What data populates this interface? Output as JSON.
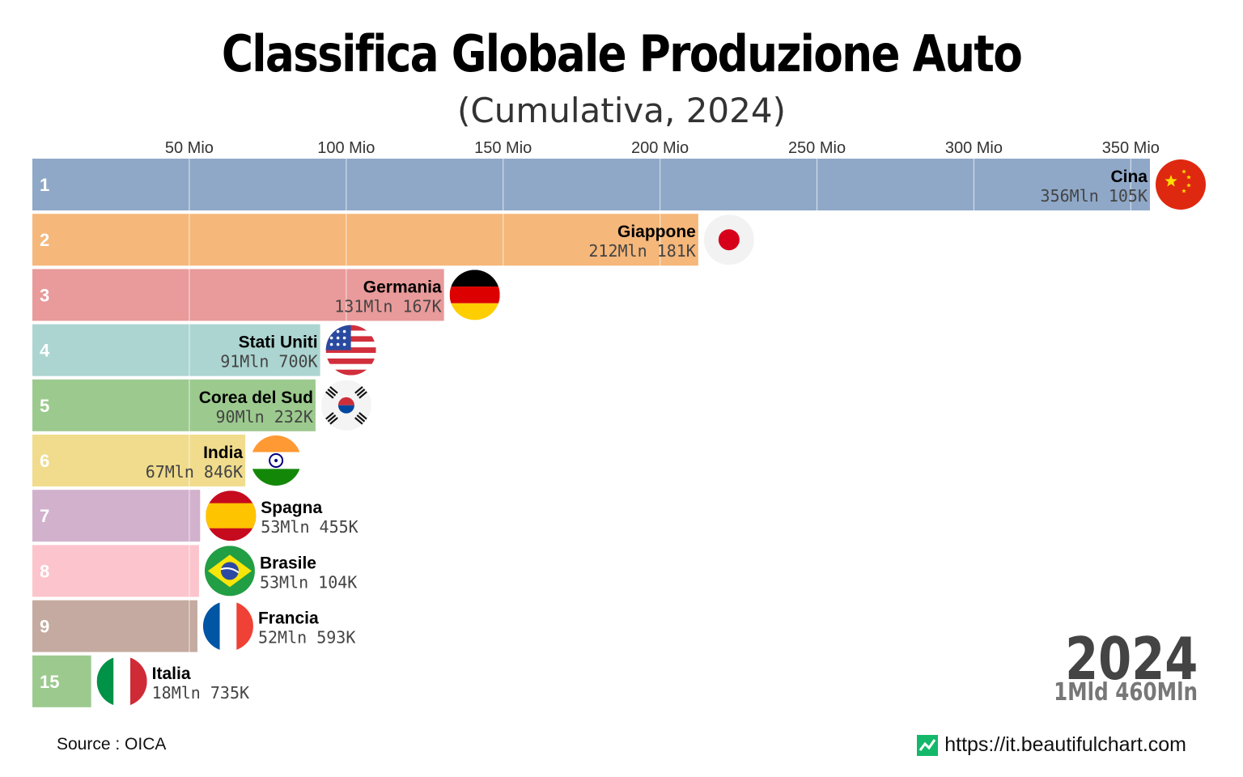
{
  "header": {
    "title": "Classifica Globale Produzione Auto",
    "subtitle": "(Cumulativa, 2024)"
  },
  "footer": {
    "source": "Source : OICA",
    "website": "https://it.beautifulchart.com"
  },
  "year_display": {
    "year": "2024",
    "total": "1Mld 460Mln"
  },
  "chart_data": {
    "type": "bar",
    "orientation": "horizontal",
    "title": "Classifica Globale Produzione Auto",
    "subtitle": "(Cumulativa, 2024)",
    "xlim": [
      0,
      356105000
    ],
    "ticks": [
      {
        "value": 50000000,
        "label": "50 Mio"
      },
      {
        "value": 100000000,
        "label": "100 Mio"
      },
      {
        "value": 150000000,
        "label": "150 Mio"
      },
      {
        "value": 200000000,
        "label": "200 Mio"
      },
      {
        "value": 250000000,
        "label": "250 Mio"
      },
      {
        "value": 300000000,
        "label": "300 Mio"
      },
      {
        "value": 350000000,
        "label": "350 Mio"
      }
    ],
    "grid": true,
    "bars": [
      {
        "rank": "1",
        "country": "Cina",
        "value": 356105000,
        "value_label": "356Mln 105K",
        "color": "#8fa8c8",
        "flag": "china-flag"
      },
      {
        "rank": "2",
        "country": "Giappone",
        "value": 212181000,
        "value_label": "212Mln 181K",
        "color": "#f5b77a",
        "flag": "japan-flag"
      },
      {
        "rank": "3",
        "country": "Germania",
        "value": 131167000,
        "value_label": "131Mln 167K",
        "color": "#e99a9a",
        "flag": "germany-flag"
      },
      {
        "rank": "4",
        "country": "Stati Uniti",
        "value": 91700000,
        "value_label": "91Mln 700K",
        "color": "#acd5d1",
        "flag": "usa-flag"
      },
      {
        "rank": "5",
        "country": "Corea del Sud",
        "value": 90232000,
        "value_label": "90Mln 232K",
        "color": "#9cca8e",
        "flag": "south-korea-flag"
      },
      {
        "rank": "6",
        "country": "India",
        "value": 67846000,
        "value_label": "67Mln 846K",
        "color": "#f0dc8c",
        "flag": "india-flag"
      },
      {
        "rank": "7",
        "country": "Spagna",
        "value": 53455000,
        "value_label": "53Mln 455K",
        "color": "#d2b1cd",
        "flag": "spain-flag"
      },
      {
        "rank": "8",
        "country": "Brasile",
        "value": 53104000,
        "value_label": "53Mln 104K",
        "color": "#fcc4cc",
        "flag": "brazil-flag"
      },
      {
        "rank": "9",
        "country": "Francia",
        "value": 52593000,
        "value_label": "52Mln 593K",
        "color": "#c4aaa0",
        "flag": "france-flag"
      },
      {
        "rank": "15",
        "country": "Italia",
        "value": 18735000,
        "value_label": "18Mln 735K",
        "color": "#9cca8e",
        "flag": "italy-flag"
      }
    ]
  }
}
